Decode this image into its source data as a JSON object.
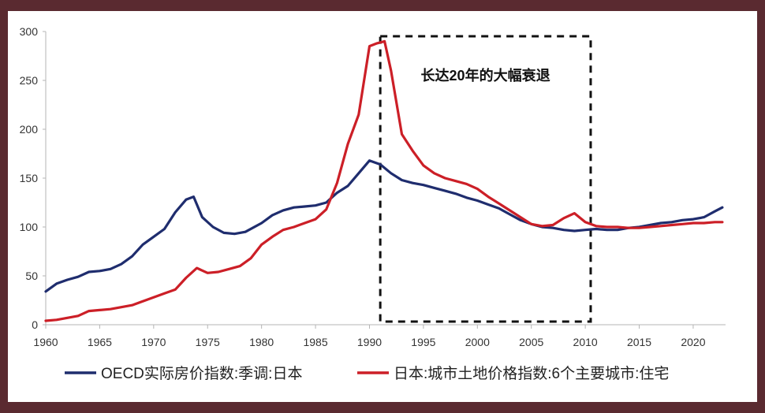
{
  "chart_data": {
    "type": "line",
    "title": "",
    "xlabel": "",
    "ylabel": "",
    "xlim": [
      1960,
      2023
    ],
    "ylim": [
      0,
      300
    ],
    "x_ticks": [
      "1960",
      "1965",
      "1970",
      "1975",
      "1980",
      "1985",
      "1990",
      "1995",
      "2000",
      "2005",
      "2010",
      "2015",
      "2020"
    ],
    "y_ticks": [
      "0",
      "50",
      "100",
      "150",
      "200",
      "250",
      "300"
    ],
    "grid": false,
    "legend_position": "bottom",
    "annotation": {
      "text": "长达20年的大幅衰退",
      "x_range": [
        1991,
        2010.5
      ],
      "style": "dashed-box"
    },
    "series": [
      {
        "name": "OECD实际房价指数:季调:日本",
        "color": "#1f2d6e",
        "x": [
          1960,
          1961,
          1962,
          1963,
          1964,
          1965,
          1966,
          1967,
          1968,
          1969,
          1970,
          1971,
          1972,
          1973,
          1973.7,
          1974.5,
          1975.5,
          1976.5,
          1977.5,
          1978.5,
          1980,
          1981,
          1982,
          1983,
          1984,
          1985,
          1986,
          1987,
          1988,
          1989,
          1990,
          1991,
          1992,
          1993,
          1994,
          1995,
          1996,
          1997,
          1998,
          1999,
          2000,
          2001,
          2002,
          2003,
          2004,
          2005,
          2006,
          2007,
          2008,
          2009,
          2010,
          2011,
          2012,
          2013,
          2014,
          2015,
          2016,
          2017,
          2018,
          2019,
          2020,
          2021,
          2022,
          2022.7
        ],
        "values": [
          34,
          42,
          46,
          49,
          54,
          55,
          57,
          62,
          70,
          82,
          90,
          98,
          115,
          128,
          131,
          110,
          100,
          94,
          93,
          95,
          104,
          112,
          117,
          120,
          121,
          122,
          125,
          135,
          142,
          155,
          168,
          164,
          155,
          148,
          145,
          143,
          140,
          137,
          134,
          130,
          127,
          123,
          119,
          113,
          107,
          103,
          100,
          99,
          97,
          96,
          97,
          98,
          97,
          97,
          99,
          100,
          102,
          104,
          105,
          107,
          108,
          110,
          116,
          120
        ]
      },
      {
        "name": "日本:城市土地价格指数:6个主要城市:住宅",
        "color": "#cc1f27",
        "x": [
          1960,
          1961,
          1962,
          1963,
          1964,
          1965,
          1966,
          1967,
          1968,
          1969,
          1970,
          1971,
          1972,
          1973,
          1974,
          1975,
          1976,
          1977,
          1978,
          1979,
          1980,
          1981,
          1982,
          1983,
          1984,
          1985,
          1986,
          1987,
          1988,
          1989,
          1990,
          1990.7,
          1991.4,
          1992,
          1993,
          1994,
          1995,
          1996,
          1997,
          1998,
          1999,
          2000,
          2001,
          2002,
          2003,
          2004,
          2005,
          2006,
          2007,
          2008,
          2009,
          2010,
          2011,
          2012,
          2013,
          2014,
          2015,
          2016,
          2017,
          2018,
          2019,
          2020,
          2021,
          2022,
          2022.7
        ],
        "values": [
          4,
          5,
          7,
          9,
          14,
          15,
          16,
          18,
          20,
          24,
          28,
          32,
          36,
          48,
          58,
          53,
          54,
          57,
          60,
          68,
          82,
          90,
          97,
          100,
          104,
          108,
          118,
          145,
          185,
          215,
          285,
          288,
          290,
          260,
          195,
          178,
          163,
          155,
          150,
          147,
          144,
          139,
          131,
          124,
          117,
          110,
          103,
          101,
          102,
          109,
          114,
          105,
          101,
          100,
          100,
          99,
          99,
          100,
          101,
          102,
          103,
          104,
          104,
          105,
          105
        ]
      }
    ]
  }
}
